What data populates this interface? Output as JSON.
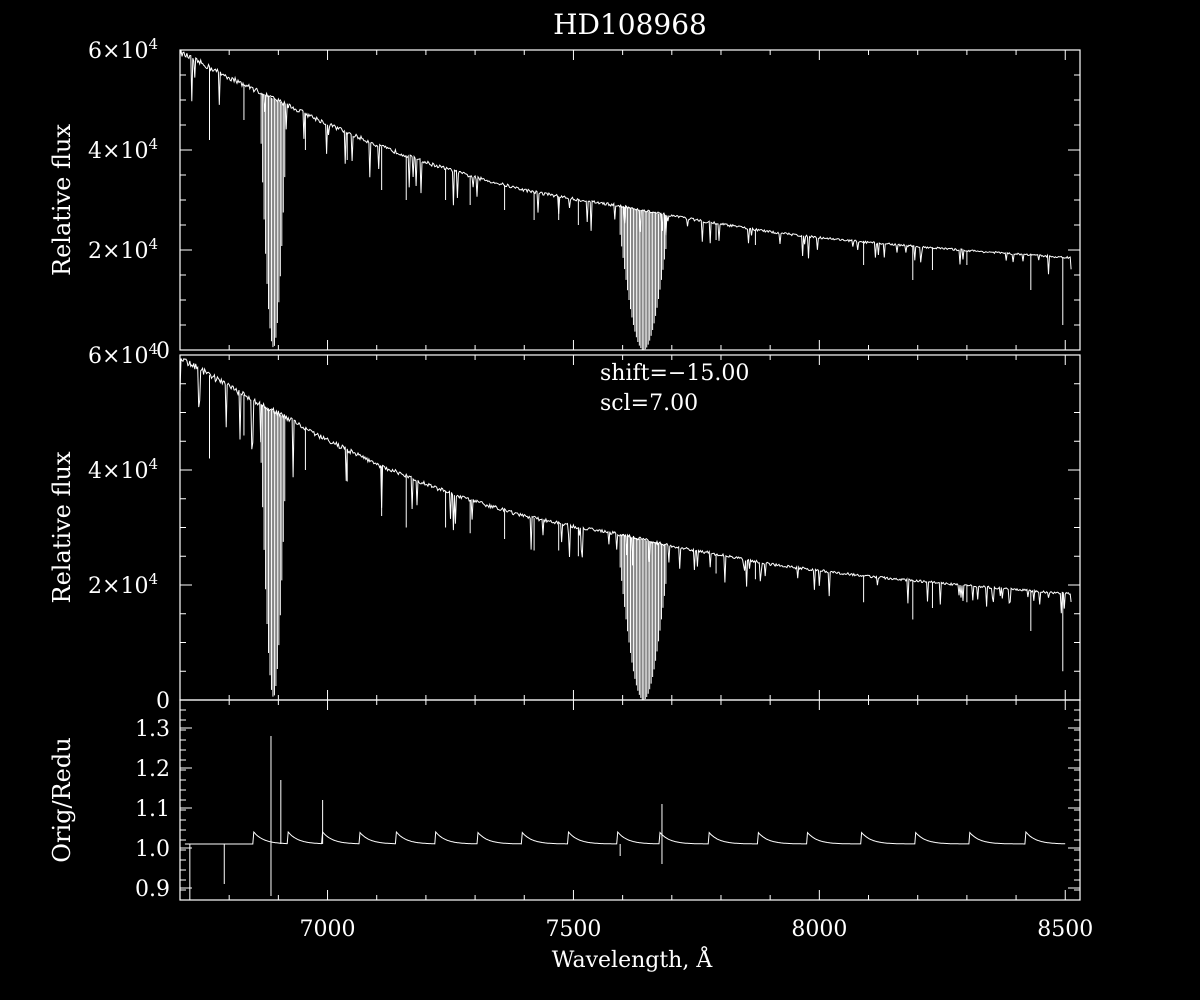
{
  "chart_data": [
    {
      "type": "line",
      "title": "HD108968",
      "ylabel": "Relative flux",
      "xlim": [
        6700,
        8530
      ],
      "ylim": [
        0,
        60000
      ],
      "yticks": [
        {
          "v": 0,
          "label": "0"
        },
        {
          "v": 20000,
          "label": "2×10",
          "exp": "4"
        },
        {
          "v": 40000,
          "label": "4×10",
          "exp": "4"
        },
        {
          "v": 60000,
          "label": "6×10",
          "exp": "4"
        }
      ],
      "continuum": [
        [
          6700,
          59500
        ],
        [
          6800,
          54500
        ],
        [
          6900,
          49800
        ],
        [
          7000,
          45200
        ],
        [
          7100,
          41000
        ],
        [
          7200,
          37500
        ],
        [
          7300,
          34500
        ],
        [
          7400,
          32000
        ],
        [
          7500,
          30200
        ],
        [
          7595,
          28800
        ],
        [
          7700,
          26800
        ],
        [
          7800,
          25200
        ],
        [
          7900,
          23600
        ],
        [
          8000,
          22500
        ],
        [
          8100,
          21500
        ],
        [
          8200,
          20700
        ],
        [
          8300,
          19900
        ],
        [
          8400,
          19200
        ],
        [
          8500,
          18500
        ]
      ],
      "absorption_bands": [
        {
          "from": 6865,
          "to": 6915,
          "min": 500
        },
        {
          "from": 7595,
          "to": 7690,
          "min": 0
        }
      ],
      "lines": [
        [
          6760,
          42000
        ],
        [
          6830,
          46000
        ],
        [
          6955,
          40000
        ],
        [
          7040,
          38000
        ],
        [
          7110,
          32000
        ],
        [
          7160,
          30000
        ],
        [
          7240,
          30000
        ],
        [
          7290,
          29000
        ],
        [
          7360,
          28000
        ],
        [
          7420,
          26000
        ],
        [
          7470,
          26000
        ],
        [
          7510,
          25000
        ],
        [
          7790,
          22000
        ],
        [
          7870,
          21000
        ],
        [
          8090,
          17000
        ],
        [
          8190,
          14000
        ],
        [
          8230,
          16000
        ],
        [
          8300,
          17000
        ],
        [
          8430,
          12000
        ],
        [
          8495,
          5000
        ]
      ]
    },
    {
      "type": "line",
      "ylabel": "Relative flux",
      "xlim": [
        6700,
        8530
      ],
      "ylim": [
        0,
        60000
      ],
      "annotation": [
        "shift=−15.00",
        "scl=7.00"
      ],
      "yticks": [
        {
          "v": 0,
          "label": "0"
        },
        {
          "v": 20000,
          "label": "2×10",
          "exp": "4"
        },
        {
          "v": 40000,
          "label": "4×10",
          "exp": "4"
        },
        {
          "v": 60000,
          "label": "6×10",
          "exp": "4"
        }
      ],
      "continuum": [
        [
          6700,
          59500
        ],
        [
          6800,
          54500
        ],
        [
          6900,
          49800
        ],
        [
          7000,
          45200
        ],
        [
          7100,
          41000
        ],
        [
          7200,
          37500
        ],
        [
          7300,
          34500
        ],
        [
          7400,
          32000
        ],
        [
          7500,
          30200
        ],
        [
          7595,
          28800
        ],
        [
          7700,
          26800
        ],
        [
          7800,
          25200
        ],
        [
          7900,
          23600
        ],
        [
          8000,
          22500
        ],
        [
          8100,
          21500
        ],
        [
          8200,
          20700
        ],
        [
          8300,
          19900
        ],
        [
          8400,
          19200
        ],
        [
          8500,
          18500
        ]
      ],
      "absorption_bands": [
        {
          "from": 6865,
          "to": 6915,
          "min": 500
        },
        {
          "from": 7595,
          "to": 7690,
          "min": 0
        }
      ],
      "lines": [
        [
          6760,
          42000
        ],
        [
          6830,
          46000
        ],
        [
          6955,
          40000
        ],
        [
          7040,
          38000
        ],
        [
          7110,
          32000
        ],
        [
          7160,
          30000
        ],
        [
          7240,
          30000
        ],
        [
          7290,
          29000
        ],
        [
          7360,
          28000
        ],
        [
          7420,
          26000
        ],
        [
          7470,
          26000
        ],
        [
          7510,
          25000
        ],
        [
          7790,
          22000
        ],
        [
          7870,
          21000
        ],
        [
          8090,
          17000
        ],
        [
          8190,
          14000
        ],
        [
          8230,
          16000
        ],
        [
          8300,
          17000
        ],
        [
          8430,
          12000
        ],
        [
          8495,
          5000
        ]
      ]
    },
    {
      "type": "line",
      "ylabel": "Orig/Redu",
      "xlabel": "Wavelength, Å",
      "xlim": [
        6700,
        8530
      ],
      "ylim": [
        0.87,
        1.37
      ],
      "xticks": [
        {
          "v": 7000,
          "label": "7000"
        },
        {
          "v": 7500,
          "label": "7500"
        },
        {
          "v": 8000,
          "label": "8000"
        },
        {
          "v": 8500,
          "label": "8500"
        }
      ],
      "yticks": [
        {
          "v": 0.9,
          "label": "0.9"
        },
        {
          "v": 1.0,
          "label": "1.0"
        },
        {
          "v": 1.1,
          "label": "1.1"
        },
        {
          "v": 1.2,
          "label": "1.2"
        },
        {
          "v": 1.3,
          "label": "1.3"
        }
      ],
      "baseline": 1.01,
      "order_edges": [
        6850,
        6920,
        6990,
        7065,
        7140,
        7220,
        7305,
        7395,
        7490,
        7590,
        7675,
        7775,
        7875,
        7975,
        8085,
        8195,
        8305,
        8420
      ],
      "spikes": [
        [
          6720,
          0.87
        ],
        [
          6790,
          0.91
        ],
        [
          6885,
          1.28
        ],
        [
          6885,
          0.88
        ],
        [
          6905,
          1.17
        ],
        [
          6990,
          1.12
        ],
        [
          7595,
          0.98
        ],
        [
          7680,
          1.11
        ],
        [
          7680,
          0.96
        ]
      ]
    }
  ]
}
